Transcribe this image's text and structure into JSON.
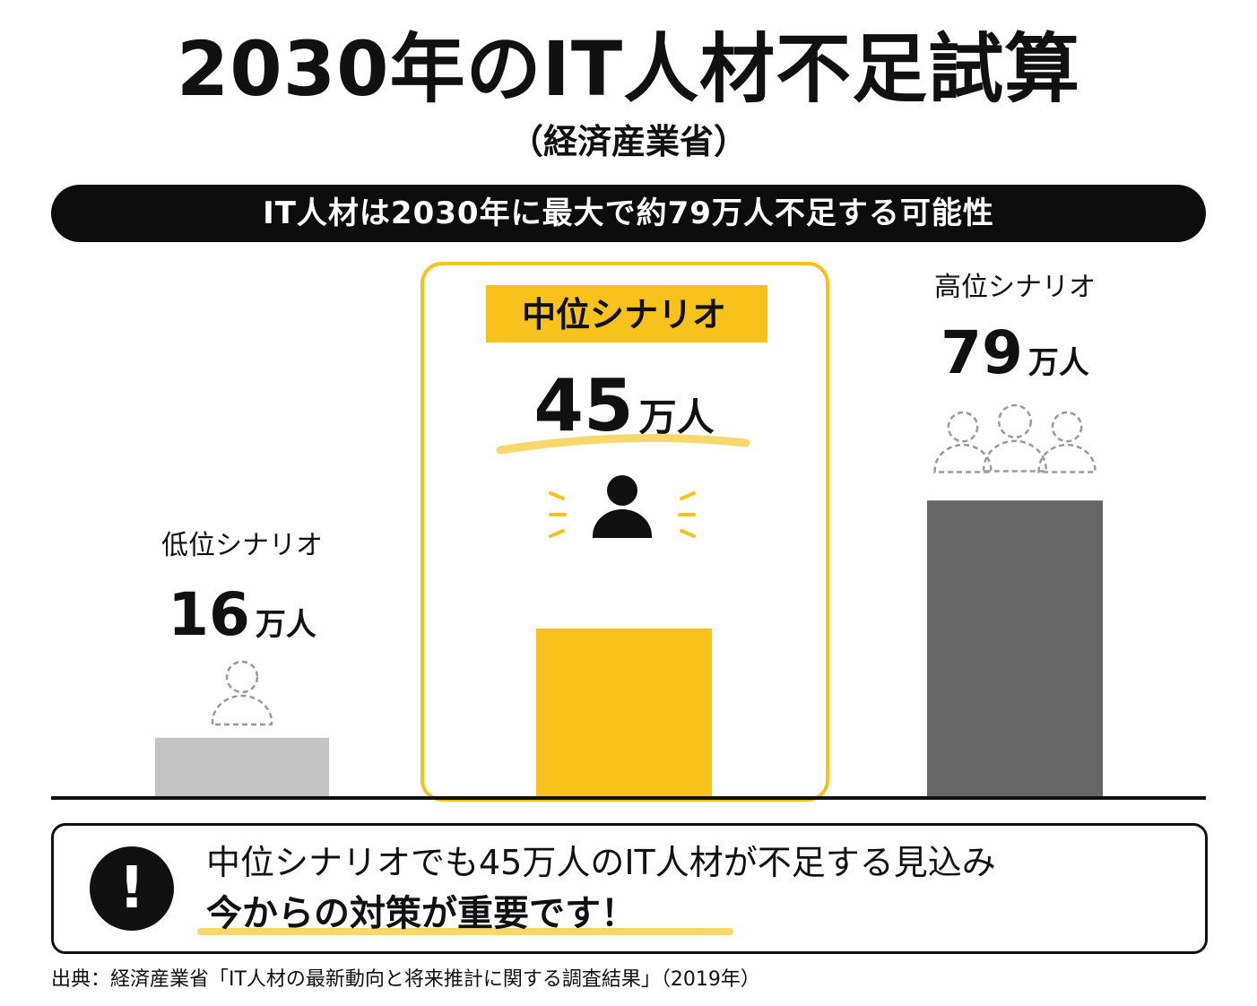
{
  "title": "2030年のIT人材不足試算",
  "subtitle": "（経済産業省）",
  "banner": "IT人材は2030年に最大で約79万人不足する可能性",
  "chart_data": {
    "type": "bar",
    "categories": [
      "低位シナリオ",
      "中位シナリオ",
      "高位シナリオ"
    ],
    "values": [
      16,
      45,
      79
    ],
    "unit": "万人",
    "highlight": "中位シナリオ",
    "colors": [
      "#c4c4c4",
      "#f7c21b",
      "#666666"
    ],
    "accent_color": "#f7c21b",
    "grid": false
  },
  "callout": {
    "icon": "exclamation-icon",
    "line1": "中位シナリオでも45万人のIT人材が不足する見込み",
    "line2": "今からの対策が重要です！"
  },
  "source": "出典：経済産業省「IT人材の最新動向と将来推計に関する調査結果」（2019年）"
}
